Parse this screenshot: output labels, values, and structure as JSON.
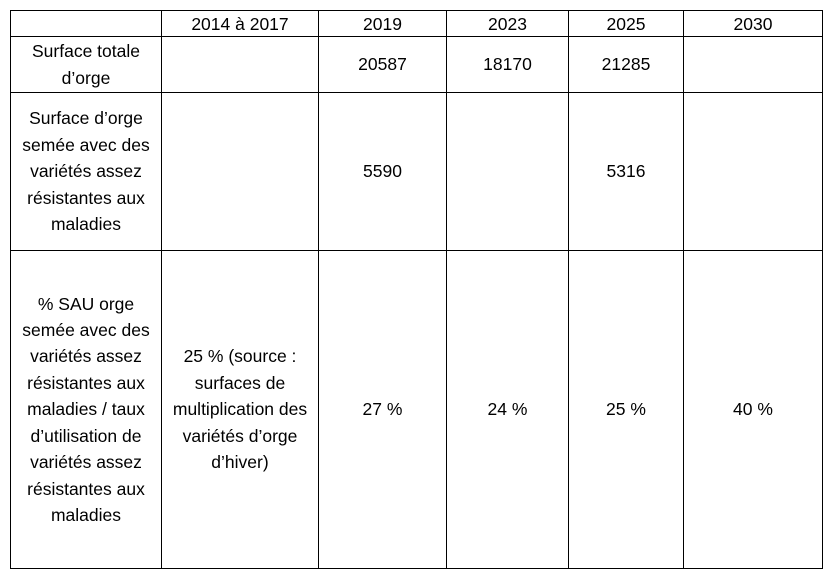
{
  "table": {
    "header": [
      null,
      "2014 à 2017",
      "2019",
      "2023",
      "2025",
      "2030"
    ],
    "rows": [
      [
        "Surface totale d’orge",
        null,
        20587,
        18170,
        21285,
        null
      ],
      [
        "Surface d’orge semée avec des variétés assez résistantes aux maladies",
        null,
        5590,
        null,
        5316,
        null
      ],
      [
        "% SAU orge semée avec des variétés assez résistantes aux maladies / taux d’utilisation de variétés assez résistantes aux maladies",
        "25 % (source : surfaces de multiplication des variétés d’orge d’hiver)",
        "27 %",
        "24 %",
        "25 %",
        "40 %"
      ]
    ]
  }
}
